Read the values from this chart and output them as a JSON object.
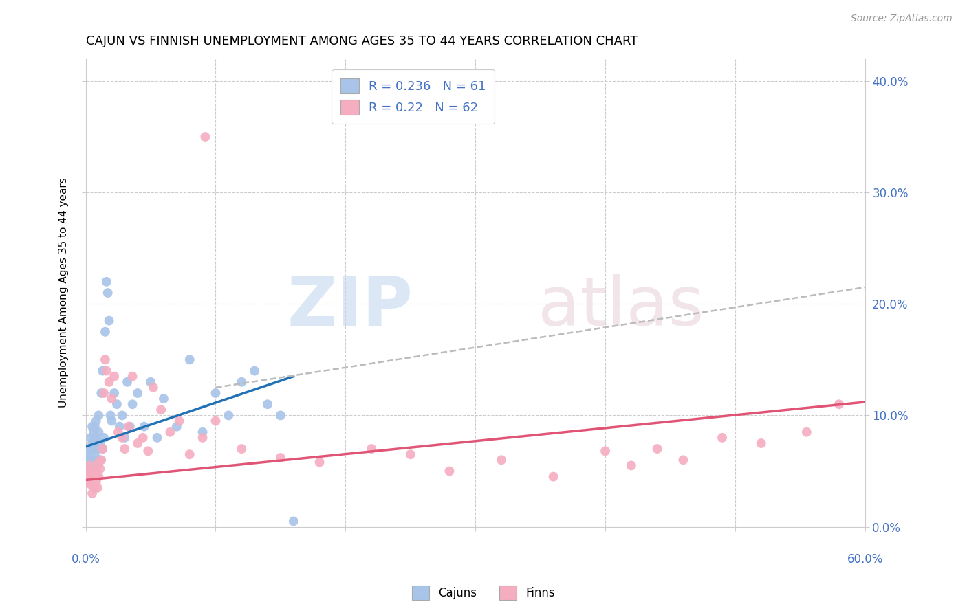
{
  "title": "CAJUN VS FINNISH UNEMPLOYMENT AMONG AGES 35 TO 44 YEARS CORRELATION CHART",
  "source": "Source: ZipAtlas.com",
  "ylabel": "Unemployment Among Ages 35 to 44 years",
  "cajun_R": 0.236,
  "cajun_N": 61,
  "finn_R": 0.22,
  "finn_N": 62,
  "cajun_color": "#a8c4e8",
  "finn_color": "#f5adc0",
  "cajun_line_color": "#2171b5",
  "finn_line_color": "#e05575",
  "dashed_line_color": "#bbbbbb",
  "xlim": [
    0.0,
    0.6
  ],
  "ylim": [
    0.0,
    0.42
  ],
  "x_ticks": [
    0.0,
    0.1,
    0.2,
    0.3,
    0.4,
    0.5,
    0.6
  ],
  "y_ticks": [
    0.0,
    0.1,
    0.2,
    0.3,
    0.4
  ],
  "cajun_x": [
    0.001,
    0.001,
    0.002,
    0.002,
    0.003,
    0.003,
    0.003,
    0.004,
    0.004,
    0.004,
    0.005,
    0.005,
    0.005,
    0.006,
    0.006,
    0.006,
    0.007,
    0.007,
    0.007,
    0.008,
    0.008,
    0.008,
    0.009,
    0.009,
    0.01,
    0.01,
    0.011,
    0.011,
    0.012,
    0.013,
    0.013,
    0.014,
    0.015,
    0.016,
    0.017,
    0.018,
    0.019,
    0.02,
    0.022,
    0.024,
    0.026,
    0.028,
    0.03,
    0.032,
    0.034,
    0.036,
    0.04,
    0.045,
    0.05,
    0.055,
    0.06,
    0.07,
    0.08,
    0.09,
    0.1,
    0.11,
    0.12,
    0.13,
    0.14,
    0.15,
    0.16
  ],
  "cajun_y": [
    0.065,
    0.055,
    0.06,
    0.05,
    0.07,
    0.06,
    0.05,
    0.08,
    0.07,
    0.055,
    0.09,
    0.075,
    0.06,
    0.085,
    0.07,
    0.055,
    0.09,
    0.08,
    0.065,
    0.095,
    0.08,
    0.06,
    0.07,
    0.055,
    0.1,
    0.085,
    0.075,
    0.06,
    0.12,
    0.14,
    0.07,
    0.08,
    0.175,
    0.22,
    0.21,
    0.185,
    0.1,
    0.095,
    0.12,
    0.11,
    0.09,
    0.1,
    0.08,
    0.13,
    0.09,
    0.11,
    0.12,
    0.09,
    0.13,
    0.08,
    0.115,
    0.09,
    0.15,
    0.085,
    0.12,
    0.1,
    0.13,
    0.14,
    0.11,
    0.1,
    0.005
  ],
  "finn_x": [
    0.001,
    0.001,
    0.002,
    0.002,
    0.003,
    0.003,
    0.004,
    0.004,
    0.005,
    0.005,
    0.005,
    0.006,
    0.006,
    0.007,
    0.007,
    0.008,
    0.008,
    0.009,
    0.009,
    0.01,
    0.01,
    0.011,
    0.012,
    0.013,
    0.014,
    0.015,
    0.016,
    0.018,
    0.02,
    0.022,
    0.025,
    0.028,
    0.03,
    0.033,
    0.036,
    0.04,
    0.044,
    0.048,
    0.052,
    0.058,
    0.065,
    0.072,
    0.08,
    0.09,
    0.092,
    0.1,
    0.12,
    0.15,
    0.18,
    0.22,
    0.25,
    0.28,
    0.32,
    0.36,
    0.4,
    0.42,
    0.44,
    0.46,
    0.49,
    0.52,
    0.555,
    0.58
  ],
  "finn_y": [
    0.05,
    0.04,
    0.05,
    0.04,
    0.055,
    0.042,
    0.048,
    0.038,
    0.052,
    0.042,
    0.03,
    0.048,
    0.038,
    0.045,
    0.035,
    0.05,
    0.04,
    0.048,
    0.035,
    0.058,
    0.045,
    0.052,
    0.06,
    0.07,
    0.12,
    0.15,
    0.14,
    0.13,
    0.115,
    0.135,
    0.085,
    0.08,
    0.07,
    0.09,
    0.135,
    0.075,
    0.08,
    0.068,
    0.125,
    0.105,
    0.085,
    0.095,
    0.065,
    0.08,
    0.35,
    0.095,
    0.07,
    0.062,
    0.058,
    0.07,
    0.065,
    0.05,
    0.06,
    0.045,
    0.068,
    0.055,
    0.07,
    0.06,
    0.08,
    0.075,
    0.085,
    0.11
  ],
  "cajun_line_x": [
    0.0,
    0.16
  ],
  "cajun_line_y": [
    0.072,
    0.135
  ],
  "finn_line_x": [
    0.0,
    0.6
  ],
  "finn_line_y": [
    0.042,
    0.112
  ],
  "dash_line_x": [
    0.1,
    0.6
  ],
  "dash_line_y": [
    0.125,
    0.215
  ]
}
